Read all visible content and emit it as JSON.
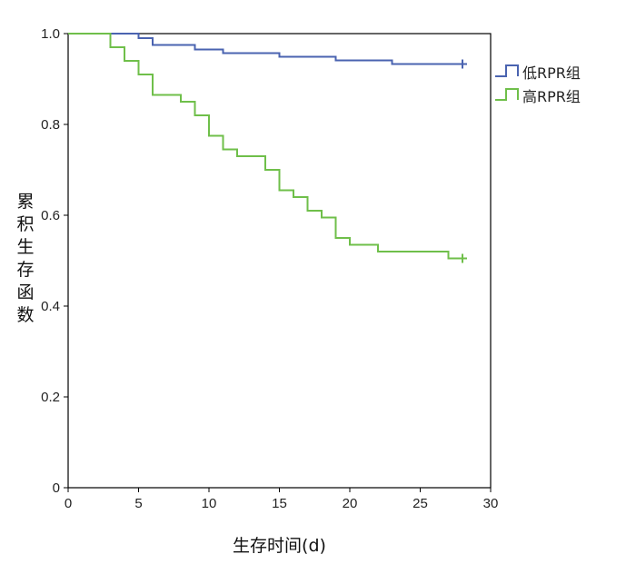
{
  "chart_data": {
    "type": "line",
    "subtype": "kaplan-meier-step",
    "title": "",
    "xlabel": "生存时间(d)",
    "ylabel": "累积生存函数",
    "xlim": [
      0,
      30
    ],
    "ylim": [
      0,
      1.0
    ],
    "x_ticks": [
      0,
      5,
      10,
      15,
      20,
      25,
      30
    ],
    "x_tick_labels": [
      "0",
      "5",
      "10",
      "15",
      "20",
      "25",
      "30"
    ],
    "y_ticks": [
      0,
      0.2,
      0.4,
      0.6,
      0.8,
      1.0
    ],
    "y_tick_labels": [
      "0",
      "0.2",
      "0.4",
      "0.6",
      "0.8",
      "1.0"
    ],
    "grid": false,
    "legend_position": "right",
    "series": [
      {
        "name": "低RPR组",
        "color": "#4a63b0",
        "censor_marker": "plus",
        "x": [
          0,
          5,
          6,
          9,
          11,
          15,
          19,
          23,
          28
        ],
        "y": [
          1.0,
          0.99,
          0.975,
          0.965,
          0.957,
          0.949,
          0.941,
          0.933,
          0.933
        ]
      },
      {
        "name": "高RPR组",
        "color": "#6fbf4a",
        "censor_marker": "plus",
        "x": [
          0,
          3,
          4,
          5,
          6,
          8,
          9,
          10,
          11,
          12,
          14,
          15,
          16,
          17,
          18,
          19,
          20,
          22,
          27,
          28
        ],
        "y": [
          1.0,
          0.97,
          0.94,
          0.91,
          0.865,
          0.85,
          0.82,
          0.775,
          0.745,
          0.73,
          0.7,
          0.655,
          0.64,
          0.61,
          0.595,
          0.55,
          0.535,
          0.52,
          0.505,
          0.505
        ]
      }
    ]
  }
}
